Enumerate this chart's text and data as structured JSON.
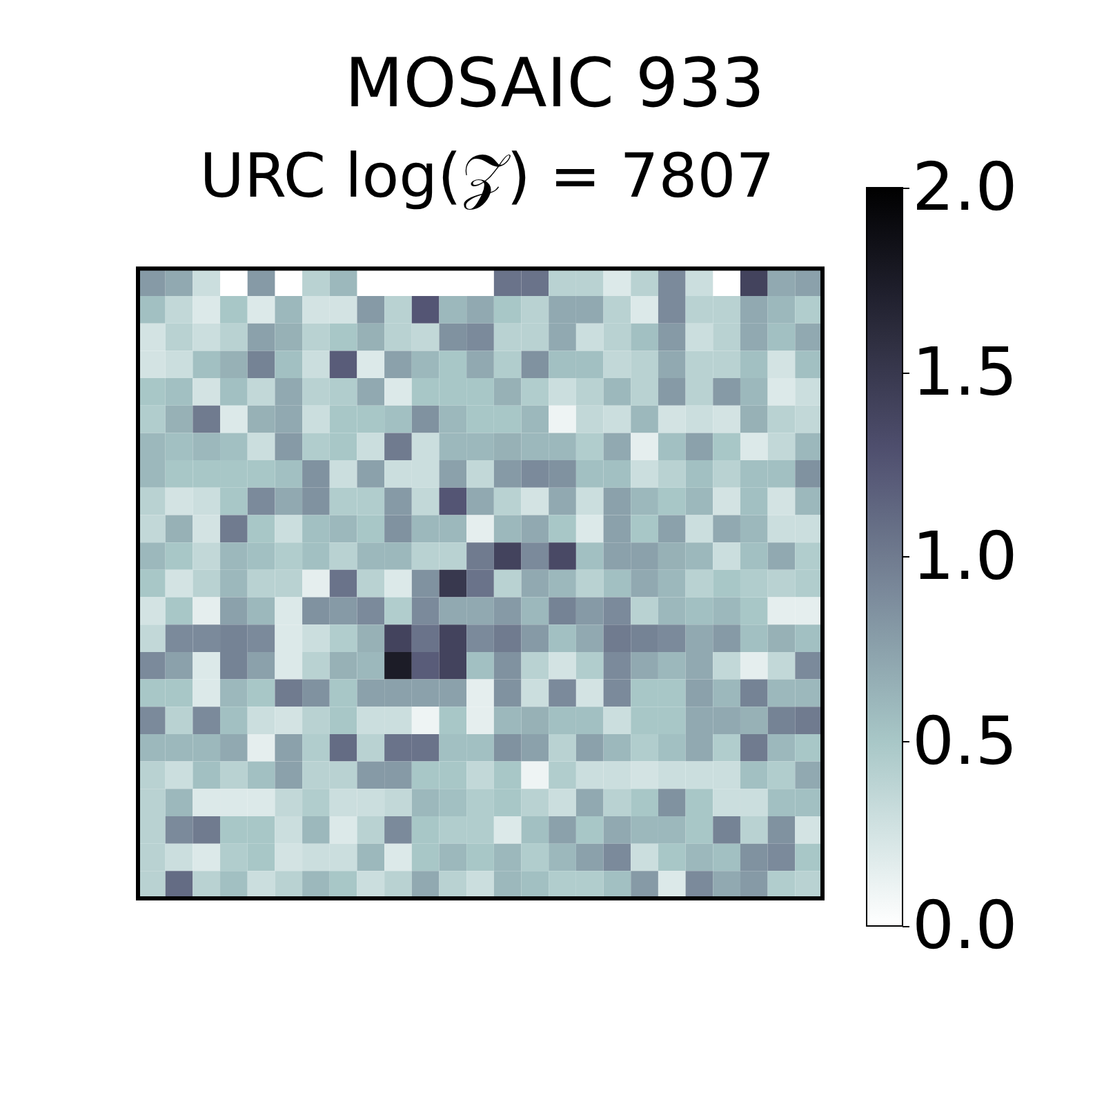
{
  "chart_data": {
    "type": "heatmap",
    "title": "MOSAIC 933",
    "subtitle": "URC log(𝒵) = 7807",
    "categories": [
      null,
      null,
      null,
      null,
      null,
      null,
      null,
      null,
      null,
      null,
      null,
      null,
      null,
      null,
      null,
      null,
      null,
      null,
      null,
      null,
      null,
      null,
      null,
      null,
      null
    ],
    "y_categories": [
      null,
      null,
      null,
      null,
      null,
      null,
      null,
      null,
      null,
      null,
      null,
      null,
      null,
      null,
      null,
      null,
      null,
      null,
      null,
      null,
      null,
      null,
      null
    ],
    "clim": [
      0,
      2
    ],
    "cticks": [
      {
        "value": 0,
        "label": "0.0"
      },
      {
        "value": 0.5,
        "label": "0.5"
      },
      {
        "value": 1,
        "label": "1.0"
      },
      {
        "value": 1.5,
        "label": "1.5"
      },
      {
        "value": 2,
        "label": "2.0"
      }
    ],
    "cells": [
      [
        0.8,
        0.7,
        0.3,
        null,
        0.8,
        null,
        0.4,
        0.6,
        null,
        null,
        null,
        null,
        null,
        1.05,
        1.05,
        0.4,
        0.4,
        0.2,
        0.4,
        0.9,
        0.3,
        null,
        1.4,
        0.7,
        0.75
      ],
      [
        0.55,
        0.35,
        0.2,
        0.5,
        0.2,
        0.6,
        0.25,
        0.25,
        0.8,
        0.4,
        1.25,
        0.6,
        0.7,
        0.5,
        0.4,
        0.7,
        0.7,
        0.4,
        0.2,
        0.9,
        0.4,
        0.4,
        0.7,
        0.6,
        0.45
      ],
      [
        0.25,
        0.4,
        0.3,
        0.4,
        0.75,
        0.65,
        0.4,
        0.5,
        0.65,
        0.4,
        0.35,
        0.85,
        0.9,
        0.4,
        0.4,
        0.7,
        0.3,
        0.4,
        0.55,
        0.8,
        0.3,
        0.4,
        0.7,
        0.55,
        0.7
      ],
      [
        0.25,
        0.3,
        0.55,
        0.65,
        0.95,
        0.55,
        0.3,
        1.2,
        0.2,
        0.75,
        0.6,
        0.5,
        0.7,
        0.45,
        0.85,
        0.55,
        0.55,
        0.35,
        0.4,
        0.7,
        0.4,
        0.4,
        0.55,
        0.25,
        0.55
      ],
      [
        0.5,
        0.55,
        0.25,
        0.55,
        0.35,
        0.7,
        0.4,
        0.45,
        0.7,
        0.2,
        0.5,
        0.5,
        0.5,
        0.65,
        0.45,
        0.3,
        0.4,
        0.6,
        0.4,
        0.8,
        0.4,
        0.8,
        0.6,
        0.2,
        0.3
      ],
      [
        0.45,
        0.65,
        1.0,
        0.2,
        0.65,
        0.7,
        0.3,
        0.5,
        0.5,
        0.55,
        0.85,
        0.6,
        0.5,
        0.5,
        0.6,
        0.1,
        0.35,
        0.3,
        0.6,
        0.25,
        0.3,
        0.25,
        0.65,
        0.4,
        0.35
      ],
      [
        0.6,
        0.55,
        0.6,
        0.55,
        0.3,
        0.8,
        0.45,
        0.5,
        0.3,
        1.0,
        0.3,
        0.6,
        0.6,
        0.65,
        0.6,
        0.6,
        0.45,
        0.7,
        0.15,
        0.55,
        0.75,
        0.5,
        0.2,
        0.35,
        0.6
      ],
      [
        0.6,
        0.5,
        0.5,
        0.5,
        0.5,
        0.55,
        0.85,
        0.3,
        0.75,
        0.3,
        0.3,
        0.75,
        0.35,
        0.8,
        0.9,
        0.85,
        0.55,
        0.55,
        0.3,
        0.4,
        0.55,
        0.4,
        0.55,
        0.55,
        0.85
      ],
      [
        0.4,
        0.25,
        0.3,
        0.5,
        0.9,
        0.7,
        0.85,
        0.45,
        0.45,
        0.8,
        0.35,
        1.25,
        0.7,
        0.4,
        0.25,
        0.7,
        0.3,
        0.75,
        0.6,
        0.5,
        0.6,
        0.25,
        0.55,
        0.25,
        0.6
      ],
      [
        0.35,
        0.65,
        0.25,
        1.0,
        0.5,
        0.3,
        0.55,
        0.6,
        0.5,
        0.85,
        0.6,
        0.6,
        0.15,
        0.6,
        0.7,
        0.5,
        0.2,
        0.75,
        0.5,
        0.75,
        0.3,
        0.7,
        0.6,
        0.3,
        0.3
      ],
      [
        0.6,
        0.5,
        0.35,
        0.6,
        0.55,
        0.45,
        0.55,
        0.4,
        0.6,
        0.6,
        0.4,
        0.4,
        1.0,
        1.4,
        0.9,
        1.35,
        0.55,
        0.75,
        0.75,
        0.65,
        0.6,
        0.3,
        0.55,
        0.7,
        0.45
      ],
      [
        0.5,
        0.25,
        0.4,
        0.6,
        0.4,
        0.4,
        0.15,
        1.05,
        0.4,
        0.2,
        0.85,
        1.5,
        1.05,
        0.4,
        0.7,
        0.6,
        0.4,
        0.55,
        0.7,
        0.6,
        0.4,
        0.5,
        0.45,
        0.4,
        0.45
      ],
      [
        0.25,
        0.5,
        0.15,
        0.75,
        0.6,
        0.2,
        0.85,
        0.8,
        0.9,
        0.45,
        0.9,
        0.7,
        0.7,
        0.8,
        0.6,
        0.95,
        0.8,
        0.9,
        0.4,
        0.6,
        0.55,
        0.6,
        0.5,
        0.15,
        0.15
      ],
      [
        0.35,
        0.9,
        0.9,
        0.95,
        0.9,
        0.2,
        0.3,
        0.45,
        0.65,
        1.4,
        1.05,
        1.4,
        0.9,
        1.0,
        0.8,
        0.55,
        0.7,
        1.0,
        0.95,
        0.9,
        0.7,
        0.8,
        0.55,
        0.65,
        0.55
      ],
      [
        0.9,
        0.75,
        0.2,
        0.95,
        0.75,
        0.2,
        0.4,
        0.65,
        0.6,
        1.75,
        1.2,
        1.4,
        0.55,
        0.85,
        0.4,
        0.25,
        0.45,
        0.9,
        0.7,
        0.6,
        0.7,
        0.35,
        0.15,
        0.35,
        0.9
      ],
      [
        0.5,
        0.5,
        0.2,
        0.6,
        0.5,
        1.0,
        0.85,
        0.5,
        0.75,
        0.75,
        0.75,
        0.75,
        0.15,
        0.85,
        0.3,
        0.9,
        0.25,
        0.9,
        0.5,
        0.5,
        0.75,
        0.6,
        0.95,
        0.6,
        0.6
      ],
      [
        0.9,
        0.4,
        0.9,
        0.55,
        0.3,
        0.25,
        0.4,
        0.5,
        0.3,
        0.3,
        0.1,
        0.5,
        0.15,
        0.6,
        0.65,
        0.55,
        0.55,
        0.3,
        0.5,
        0.5,
        0.7,
        0.7,
        0.65,
        0.95,
        1.0
      ],
      [
        0.6,
        0.6,
        0.6,
        0.7,
        0.15,
        0.75,
        0.45,
        1.1,
        0.4,
        1.05,
        1.05,
        0.55,
        0.55,
        0.85,
        0.75,
        0.4,
        0.75,
        0.6,
        0.45,
        0.55,
        0.7,
        0.45,
        1.0,
        0.6,
        0.5
      ],
      [
        0.4,
        0.3,
        0.55,
        0.4,
        0.55,
        0.75,
        0.4,
        0.4,
        0.8,
        0.8,
        0.5,
        0.5,
        0.35,
        0.5,
        0.1,
        0.45,
        0.3,
        0.3,
        0.25,
        0.3,
        0.3,
        0.3,
        0.55,
        0.45,
        0.7
      ],
      [
        0.4,
        0.6,
        0.2,
        0.2,
        0.2,
        0.35,
        0.45,
        0.3,
        0.3,
        0.35,
        0.6,
        0.55,
        0.45,
        0.5,
        0.4,
        0.3,
        0.7,
        0.4,
        0.5,
        0.85,
        0.5,
        0.3,
        0.3,
        0.55,
        0.55
      ],
      [
        0.4,
        0.9,
        1.0,
        0.5,
        0.5,
        0.3,
        0.6,
        0.2,
        0.4,
        0.9,
        0.5,
        0.45,
        0.45,
        0.2,
        0.55,
        0.75,
        0.5,
        0.7,
        0.6,
        0.6,
        0.5,
        0.95,
        0.4,
        0.85,
        0.25
      ],
      [
        0.4,
        0.3,
        0.2,
        0.45,
        0.5,
        0.25,
        0.3,
        0.3,
        0.6,
        0.2,
        0.5,
        0.6,
        0.5,
        0.6,
        0.45,
        0.6,
        0.75,
        0.9,
        0.3,
        0.5,
        0.6,
        0.55,
        0.85,
        0.9,
        0.5
      ],
      [
        0.4,
        1.1,
        0.4,
        0.55,
        0.3,
        0.4,
        0.6,
        0.5,
        0.3,
        0.4,
        0.7,
        0.4,
        0.3,
        0.6,
        0.55,
        0.45,
        0.45,
        0.55,
        0.8,
        0.2,
        0.9,
        0.7,
        0.8,
        0.45,
        0.4
      ]
    ]
  }
}
